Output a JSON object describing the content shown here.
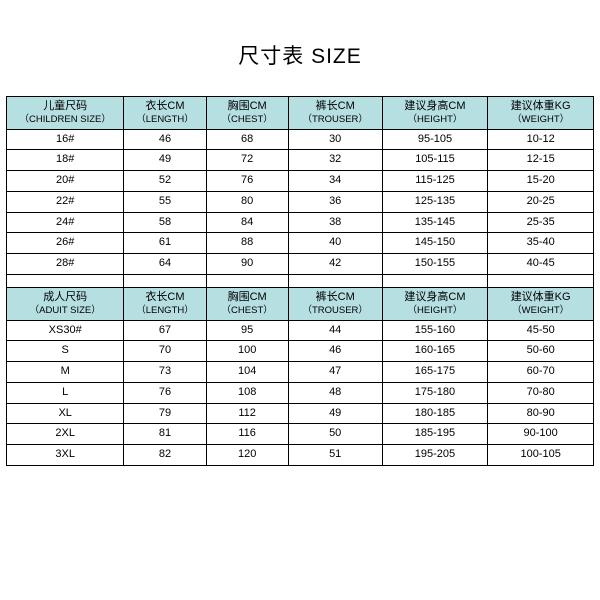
{
  "title": "尺寸表 SIZE",
  "header_bg": "#b6dfe2",
  "columns": {
    "children": [
      {
        "zh": "儿童尺码",
        "en": "（CHILDREN SIZE）"
      },
      {
        "zh": "衣长CM",
        "en": "（LENGTH）"
      },
      {
        "zh": "胸围CM",
        "en": "（CHEST）"
      },
      {
        "zh": "裤长CM",
        "en": "（TROUSER）"
      },
      {
        "zh": "建议身高CM",
        "en": "（HEIGHT）"
      },
      {
        "zh": "建议体重KG",
        "en": "（WEIGHT）"
      }
    ],
    "adult": [
      {
        "zh": "成人尺码",
        "en": "（ADUIT SIZE）"
      },
      {
        "zh": "衣长CM",
        "en": "（LENGTH）"
      },
      {
        "zh": "胸围CM",
        "en": "（CHEST）"
      },
      {
        "zh": "裤长CM",
        "en": "（TROUSER）"
      },
      {
        "zh": "建议身高CM",
        "en": "（HEIGHT）"
      },
      {
        "zh": "建议体重KG",
        "en": "（WEIGHT）"
      }
    ]
  },
  "children_rows": [
    [
      "16#",
      "46",
      "68",
      "30",
      "95-105",
      "10-12"
    ],
    [
      "18#",
      "49",
      "72",
      "32",
      "105-115",
      "12-15"
    ],
    [
      "20#",
      "52",
      "76",
      "34",
      "115-125",
      "15-20"
    ],
    [
      "22#",
      "55",
      "80",
      "36",
      "125-135",
      "20-25"
    ],
    [
      "24#",
      "58",
      "84",
      "38",
      "135-145",
      "25-35"
    ],
    [
      "26#",
      "61",
      "88",
      "40",
      "145-150",
      "35-40"
    ],
    [
      "28#",
      "64",
      "90",
      "42",
      "150-155",
      "40-45"
    ]
  ],
  "adult_rows": [
    [
      "XS30#",
      "67",
      "95",
      "44",
      "155-160",
      "45-50"
    ],
    [
      "S",
      "70",
      "100",
      "46",
      "160-165",
      "50-60"
    ],
    [
      "M",
      "73",
      "104",
      "47",
      "165-175",
      "60-70"
    ],
    [
      "L",
      "76",
      "108",
      "48",
      "175-180",
      "70-80"
    ],
    [
      "XL",
      "79",
      "112",
      "49",
      "180-185",
      "80-90"
    ],
    [
      "2XL",
      "81",
      "116",
      "50",
      "185-195",
      "90-100"
    ],
    [
      "3XL",
      "82",
      "120",
      "51",
      "195-205",
      "100-105"
    ]
  ]
}
